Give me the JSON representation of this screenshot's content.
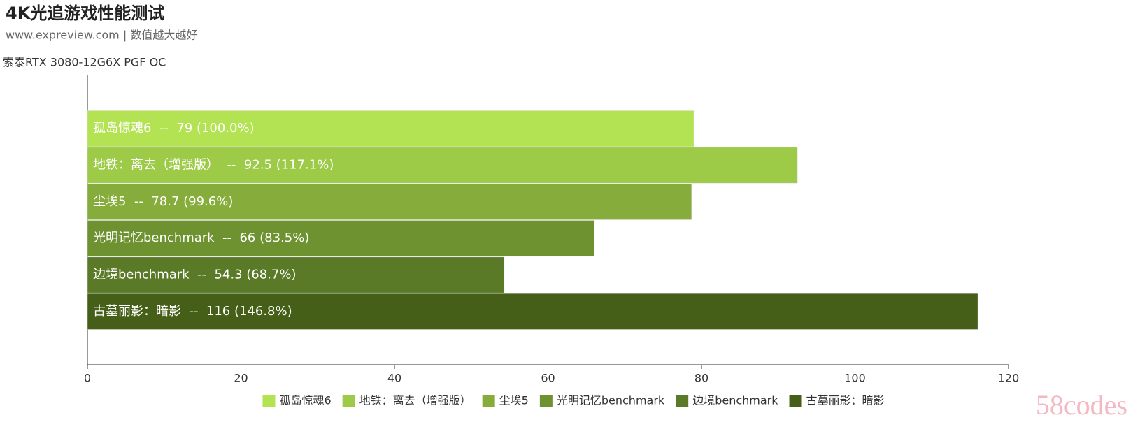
{
  "chart_data": {
    "type": "bar",
    "orientation": "horizontal",
    "title": "4K光追游戏性能测试",
    "subtitle": "www.expreview.com | 数值越大越好",
    "categories": [
      "索泰RTX 3080-12G6X PGF OC"
    ],
    "series": [
      {
        "name": "孤岛惊魂6",
        "color": "#b3e352",
        "values": [
          79
        ],
        "value_labels": [
          "孤岛惊魂6  --  79 (100.0%)"
        ]
      },
      {
        "name": "地铁：离去（增强版）",
        "color": "#9dcb48",
        "values": [
          92.5
        ],
        "value_labels": [
          "地铁：离去（增强版）  --  92.5 (117.1%)"
        ]
      },
      {
        "name": "尘埃5",
        "color": "#86ad3c",
        "values": [
          78.7
        ],
        "value_labels": [
          "尘埃5  --  78.7 (99.6%)"
        ]
      },
      {
        "name": "光明记忆benchmark",
        "color": "#6f9230",
        "values": [
          66
        ],
        "value_labels": [
          "光明记忆benchmark  --  66 (83.5%)"
        ]
      },
      {
        "name": "边境benchmark",
        "color": "#5b7a27",
        "values": [
          54.3
        ],
        "value_labels": [
          "边境benchmark  --  54.3 (68.7%)"
        ]
      },
      {
        "name": "古墓丽影：暗影",
        "color": "#465f18",
        "values": [
          116
        ],
        "value_labels": [
          "古墓丽影：暗影  --  116 (146.8%)"
        ]
      }
    ],
    "xlim": [
      0,
      120
    ],
    "xticks": [
      0,
      20,
      40,
      60,
      80,
      100,
      120
    ],
    "legend": "bottom",
    "watermark": "58codes"
  }
}
